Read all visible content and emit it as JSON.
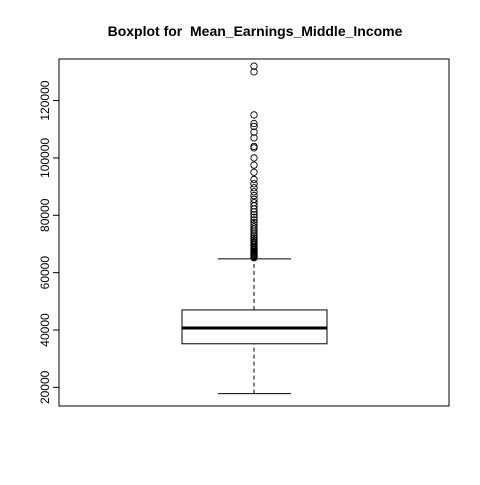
{
  "chart_data": {
    "type": "boxplot",
    "title": "Boxplot for  Mean_Earnings_Middle_Income",
    "xlabel": "",
    "ylabel": "",
    "ylim": [
      13500,
      134500
    ],
    "yticks": [
      20000,
      40000,
      60000,
      80000,
      100000,
      120000
    ],
    "grid": false,
    "box": {
      "whisker_low": 17800,
      "q1": 35200,
      "median": 40700,
      "q3": 47000,
      "whisker_high": 64800
    },
    "outliers": [
      65200,
      65500,
      65800,
      66100,
      66400,
      66700,
      67000,
      67300,
      67600,
      68000,
      68400,
      68800,
      69200,
      69700,
      70200,
      70700,
      71300,
      71900,
      72500,
      73100,
      73800,
      74500,
      75200,
      75900,
      76700,
      77500,
      78400,
      79300,
      80200,
      81200,
      82200,
      83300,
      84400,
      85600,
      86900,
      88200,
      89600,
      91000,
      92500,
      95000,
      97500,
      100000,
      103500,
      104000,
      107000,
      109000,
      111000,
      112000,
      115000,
      130000,
      132000
    ]
  }
}
